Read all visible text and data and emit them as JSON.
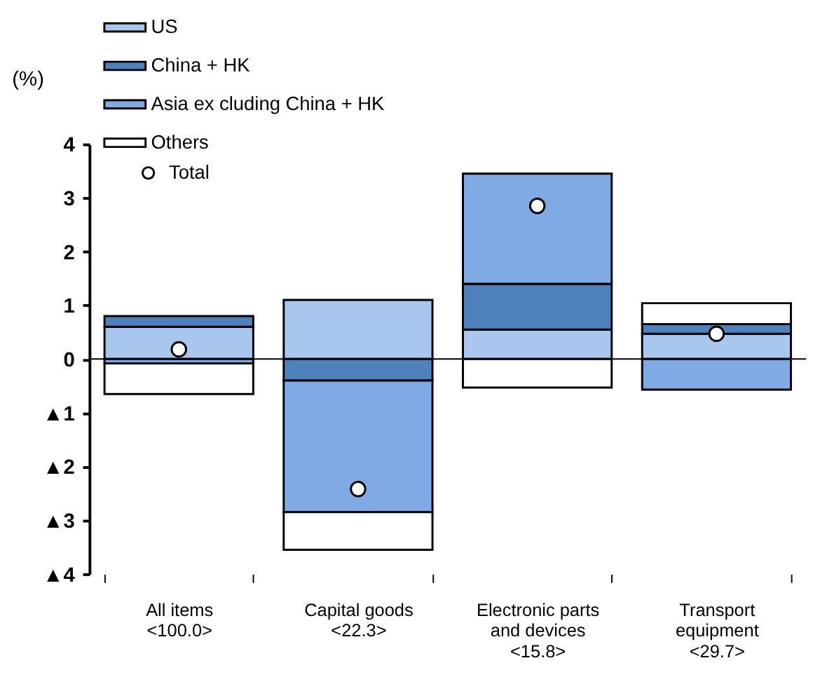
{
  "chart_data": {
    "type": "bar",
    "stacked": true,
    "ylabel": "(%)",
    "categories": [
      "All items\n<100.0>",
      "Capital goods\n<22.3>",
      "Electronic parts\nand devices\n<15.8>",
      "Transport\nequipment\n<29.7>"
    ],
    "series": [
      {
        "name": "US",
        "color": "#a9c6ee",
        "values": [
          0.6,
          1.1,
          0.55,
          0.47
        ]
      },
      {
        "name": "China + HK",
        "color": "#4f81bd",
        "values": [
          0.2,
          -0.4,
          0.85,
          0.18
        ]
      },
      {
        "name": "Asia ex cluding China + HK",
        "color": "#7faae3",
        "values": [
          -0.08,
          -2.45,
          2.05,
          -0.57
        ]
      },
      {
        "name": "Others",
        "color": "#ffffff",
        "values": [
          -0.57,
          -0.7,
          -0.53,
          0.39
        ]
      },
      {
        "name": "Total",
        "type": "scatter",
        "color": "#ffffff",
        "marker": "circle",
        "values": [
          0.18,
          -2.42,
          2.85,
          0.47
        ]
      }
    ],
    "ylim": [
      -4,
      4
    ],
    "yticks": [
      {
        "value": -4,
        "label": "▲4"
      },
      {
        "value": -3,
        "label": "▲3"
      },
      {
        "value": -2,
        "label": "▲2"
      },
      {
        "value": -1,
        "label": "▲1"
      },
      0,
      1,
      2,
      3,
      4
    ],
    "ref_lines": [
      {
        "axis": "y",
        "value": 0,
        "color": "#000000"
      }
    ],
    "legend": "top left",
    "grid": false
  }
}
